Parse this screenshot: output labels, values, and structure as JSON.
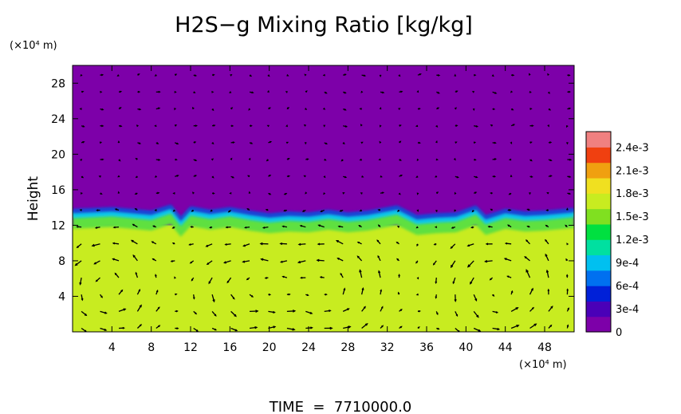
{
  "chart_data": {
    "type": "heatmap",
    "title": "H2S−g Mixing Ratio [kg/kg]",
    "ylabel": "Height",
    "y_unit": "(×10⁴ m)",
    "x_unit": "(×10⁴ m)",
    "footer": "TIME  =  7710000.0",
    "xlim": [
      0,
      51
    ],
    "ylim": [
      0,
      30
    ],
    "x_ticks": [
      4,
      8,
      12,
      16,
      20,
      24,
      28,
      32,
      36,
      40,
      44,
      48
    ],
    "y_ticks": [
      4,
      8,
      12,
      16,
      20,
      24,
      28
    ],
    "colorbar": {
      "range": [
        0,
        0.0026
      ],
      "ticks": [
        {
          "value": 0,
          "label": "0"
        },
        {
          "value": 0.0003,
          "label": "3e-4"
        },
        {
          "value": 0.0006,
          "label": "6e-4"
        },
        {
          "value": 0.0009,
          "label": "9e-4"
        },
        {
          "value": 0.0012,
          "label": "1.2e-3"
        },
        {
          "value": 0.0015,
          "label": "1.5e-3"
        },
        {
          "value": 0.0018,
          "label": "1.8e-3"
        },
        {
          "value": 0.0021,
          "label": "2.1e-3"
        },
        {
          "value": 0.0024,
          "label": "2.4e-3"
        }
      ],
      "colors": [
        "#7d00a9",
        "#4a00b8",
        "#0020d8",
        "#0070f0",
        "#00c0f0",
        "#00e0a0",
        "#00e040",
        "#80e020",
        "#c8ec20",
        "#f0e020",
        "#f0a010",
        "#f04010",
        "#f08080"
      ]
    },
    "field": {
      "lower_value": 0.00165,
      "upper_value": 0.0,
      "interface_height": 13.3,
      "green_band_top": 13.0,
      "green_band_bottom": 12.0
    },
    "interface_profile": [
      {
        "x": 0,
        "y": 13.5
      },
      {
        "x": 2,
        "y": 13.6
      },
      {
        "x": 4,
        "y": 13.7
      },
      {
        "x": 6,
        "y": 13.5
      },
      {
        "x": 8,
        "y": 13.3
      },
      {
        "x": 10,
        "y": 14.0
      },
      {
        "x": 11,
        "y": 12.6
      },
      {
        "x": 12,
        "y": 13.8
      },
      {
        "x": 14,
        "y": 13.4
      },
      {
        "x": 16,
        "y": 13.7
      },
      {
        "x": 18,
        "y": 13.3
      },
      {
        "x": 20,
        "y": 13.0
      },
      {
        "x": 22,
        "y": 13.2
      },
      {
        "x": 24,
        "y": 13.1
      },
      {
        "x": 26,
        "y": 13.4
      },
      {
        "x": 28,
        "y": 13.1
      },
      {
        "x": 30,
        "y": 13.3
      },
      {
        "x": 33,
        "y": 13.9
      },
      {
        "x": 35,
        "y": 12.8
      },
      {
        "x": 37,
        "y": 13.0
      },
      {
        "x": 39,
        "y": 13.1
      },
      {
        "x": 41,
        "y": 13.9
      },
      {
        "x": 42,
        "y": 12.8
      },
      {
        "x": 44,
        "y": 13.5
      },
      {
        "x": 46,
        "y": 13.2
      },
      {
        "x": 48,
        "y": 13.3
      },
      {
        "x": 51,
        "y": 13.6
      }
    ],
    "vortex_centers": [
      {
        "x": 3.5,
        "y": 5.0
      },
      {
        "x": 17.5,
        "y": 5.0
      },
      {
        "x": 26.0,
        "y": 5.0
      },
      {
        "x": 43.5,
        "y": 5.0
      }
    ]
  }
}
